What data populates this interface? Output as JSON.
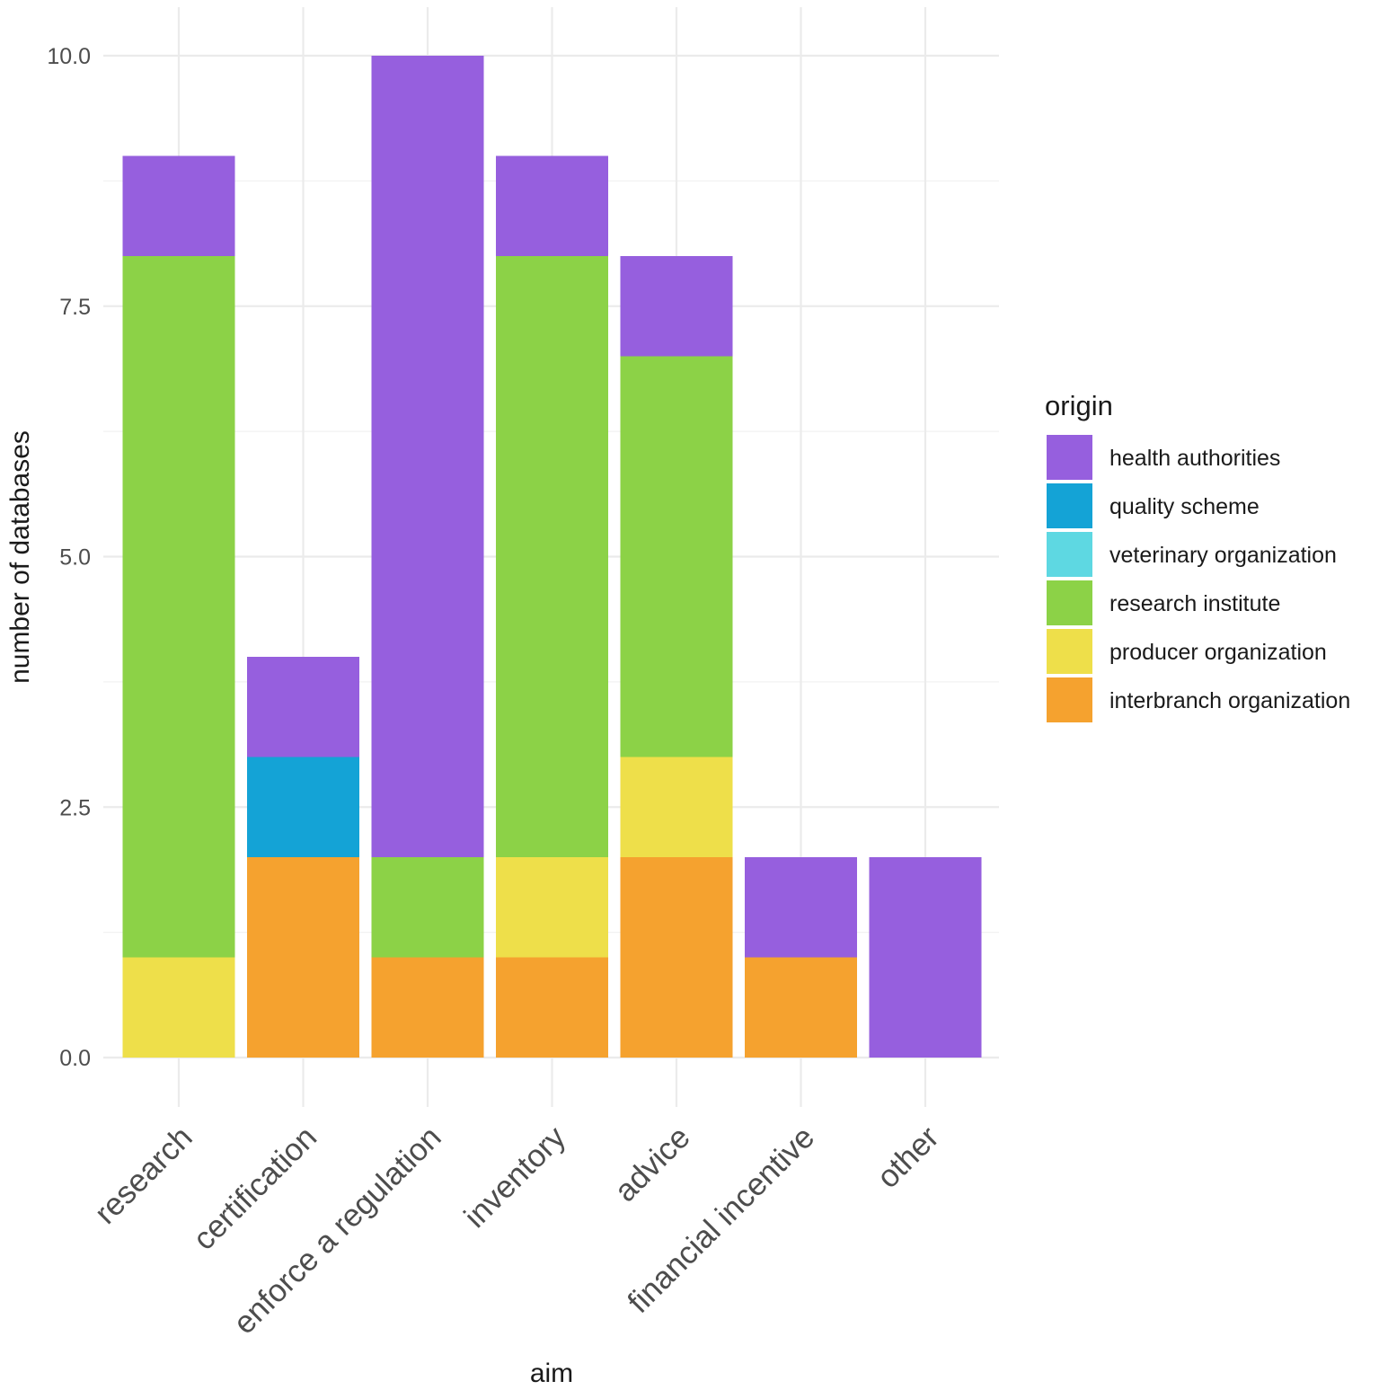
{
  "chart_data": {
    "type": "bar",
    "stacked": true,
    "title": "",
    "xlabel": "aim",
    "ylabel": "number of databases",
    "ylim": [
      0,
      10
    ],
    "yticks": [
      "0.0",
      "2.5",
      "5.0",
      "7.5",
      "10.0"
    ],
    "ytick_values": [
      0,
      2.5,
      5,
      7.5,
      10
    ],
    "grid": true,
    "legend_title": "origin",
    "legend_position": "right",
    "categories": [
      "research",
      "certification",
      "enforce a regulation",
      "inventory",
      "advice",
      "financial incentive",
      "other"
    ],
    "series": [
      {
        "name": "interbranch organization",
        "color": "#F5A22F",
        "values": [
          0,
          2,
          1,
          1,
          2,
          1,
          0
        ]
      },
      {
        "name": "producer organization",
        "color": "#EEDF4A",
        "values": [
          1,
          0,
          0,
          1,
          1,
          0,
          0
        ]
      },
      {
        "name": "research institute",
        "color": "#8CD247",
        "values": [
          7,
          0,
          1,
          6,
          4,
          0,
          0
        ]
      },
      {
        "name": "veterinary organization",
        "color": "#5ED8E2",
        "values": [
          0,
          0,
          0,
          0,
          0,
          0,
          0
        ]
      },
      {
        "name": "quality scheme",
        "color": "#14A3D6",
        "values": [
          0,
          1,
          0,
          0,
          0,
          0,
          0
        ]
      },
      {
        "name": "health authorities",
        "color": "#965FDE",
        "values": [
          1,
          1,
          8,
          1,
          1,
          1,
          2
        ]
      }
    ],
    "legend_order": [
      "health authorities",
      "quality scheme",
      "veterinary organization",
      "research institute",
      "producer organization",
      "interbranch organization"
    ]
  }
}
